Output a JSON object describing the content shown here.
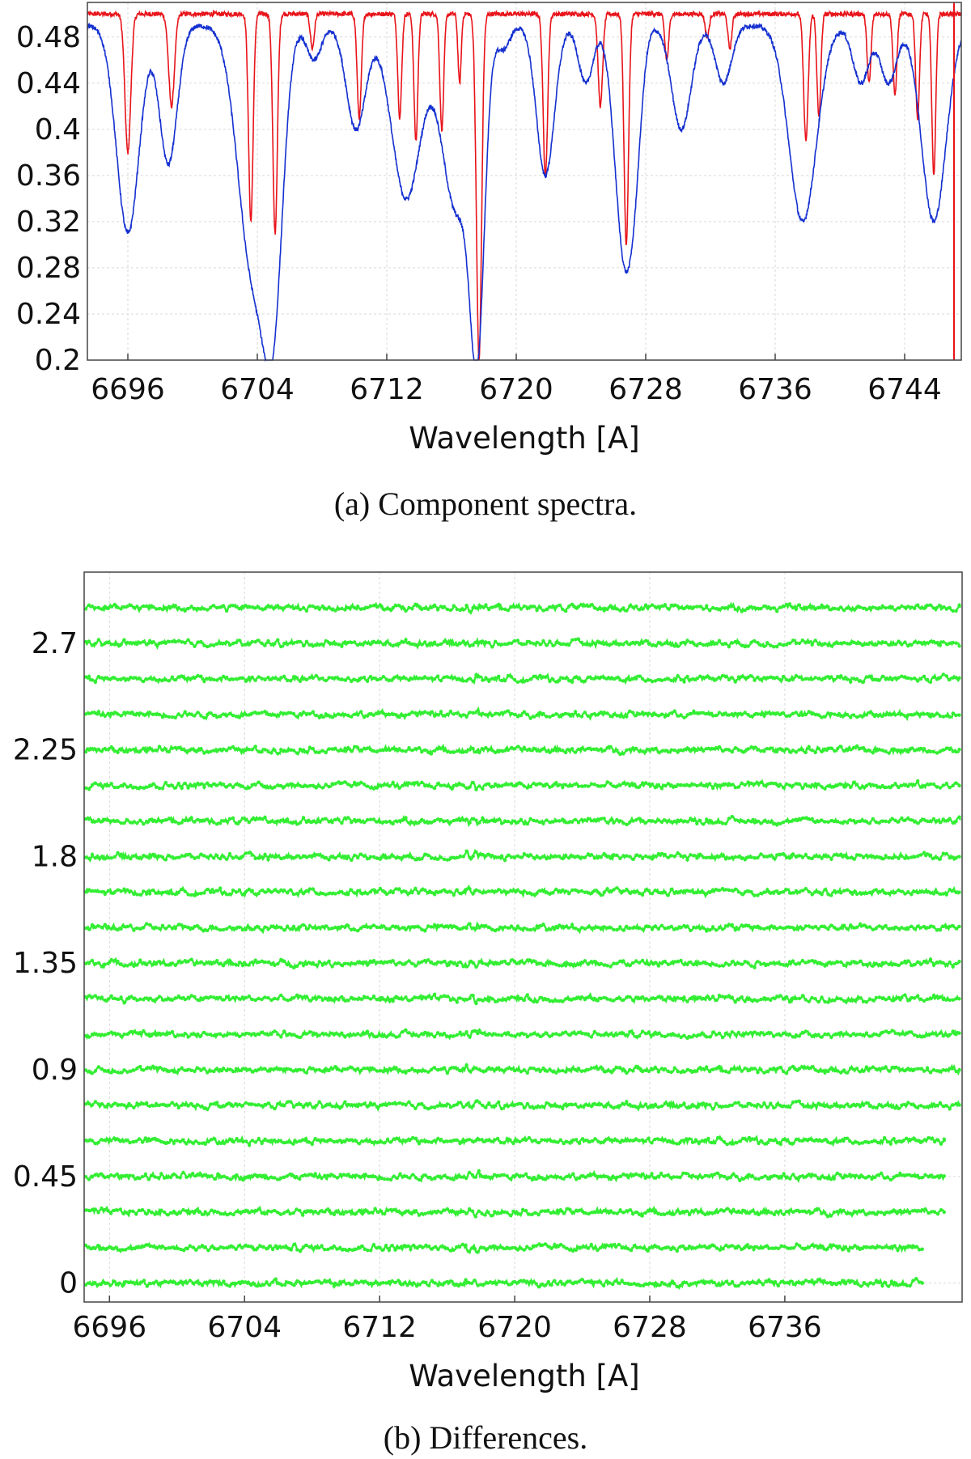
{
  "chart_data": [
    {
      "type": "line",
      "caption": "(a) Component spectra.",
      "xlabel": "Wavelength [A]",
      "ylabel": "",
      "xlim": [
        6693.5,
        6747.5
      ],
      "ylim": [
        0.2,
        0.51
      ],
      "xticks": [
        "6696",
        "6704",
        "6712",
        "6720",
        "6728",
        "6736",
        "6744"
      ],
      "yticks": [
        "0.48",
        "0.44",
        "0.4",
        "0.36",
        "0.32",
        "0.28",
        "0.24",
        "0.2"
      ],
      "grid": true,
      "colors": {
        "red": "#e8141a",
        "blue": "#1430d0"
      },
      "series": [
        {
          "color": "red",
          "continuum": 0.5,
          "lines": [
            {
              "x": 6696.0,
              "depth": 0.12,
              "width": 0.18
            },
            {
              "x": 6698.7,
              "depth": 0.08,
              "width": 0.18
            },
            {
              "x": 6703.6,
              "depth": 0.18,
              "width": 0.14
            },
            {
              "x": 6705.1,
              "depth": 0.19,
              "width": 0.14
            },
            {
              "x": 6707.4,
              "depth": 0.03,
              "width": 0.12
            },
            {
              "x": 6710.3,
              "depth": 0.09,
              "width": 0.13
            },
            {
              "x": 6712.8,
              "depth": 0.09,
              "width": 0.12
            },
            {
              "x": 6713.8,
              "depth": 0.11,
              "width": 0.12
            },
            {
              "x": 6715.4,
              "depth": 0.1,
              "width": 0.12
            },
            {
              "x": 6716.5,
              "depth": 0.06,
              "width": 0.1
            },
            {
              "x": 6717.7,
              "depth": 0.3,
              "width": 0.16
            },
            {
              "x": 6721.8,
              "depth": 0.14,
              "width": 0.14
            },
            {
              "x": 6725.2,
              "depth": 0.08,
              "width": 0.14
            },
            {
              "x": 6726.8,
              "depth": 0.2,
              "width": 0.14
            },
            {
              "x": 6729.3,
              "depth": 0.04,
              "width": 0.12
            },
            {
              "x": 6731.8,
              "depth": 0.02,
              "width": 0.12
            },
            {
              "x": 6733.2,
              "depth": 0.03,
              "width": 0.12
            },
            {
              "x": 6737.9,
              "depth": 0.11,
              "width": 0.14
            },
            {
              "x": 6738.7,
              "depth": 0.09,
              "width": 0.12
            },
            {
              "x": 6741.8,
              "depth": 0.06,
              "width": 0.12
            },
            {
              "x": 6743.4,
              "depth": 0.07,
              "width": 0.12
            },
            {
              "x": 6744.8,
              "depth": 0.09,
              "width": 0.12
            },
            {
              "x": 6745.8,
              "depth": 0.14,
              "width": 0.12
            }
          ]
        },
        {
          "color": "blue",
          "continuum": 0.49,
          "lines": [
            {
              "x": 6696.0,
              "depth": 0.18,
              "width": 0.7
            },
            {
              "x": 6698.5,
              "depth": 0.12,
              "width": 0.55
            },
            {
              "x": 6703.7,
              "depth": 0.21,
              "width": 0.9
            },
            {
              "x": 6705.0,
              "depth": 0.21,
              "width": 0.6
            },
            {
              "x": 6707.5,
              "depth": 0.03,
              "width": 0.45
            },
            {
              "x": 6710.1,
              "depth": 0.09,
              "width": 0.6
            },
            {
              "x": 6713.2,
              "depth": 0.15,
              "width": 0.9
            },
            {
              "x": 6716.3,
              "depth": 0.16,
              "width": 0.9
            },
            {
              "x": 6717.6,
              "depth": 0.24,
              "width": 0.45
            },
            {
              "x": 6719.2,
              "depth": 0.02,
              "width": 0.4
            },
            {
              "x": 6721.8,
              "depth": 0.13,
              "width": 0.55
            },
            {
              "x": 6724.3,
              "depth": 0.05,
              "width": 0.45
            },
            {
              "x": 6726.7,
              "depth": 0.2,
              "width": 0.6
            },
            {
              "x": 6727.4,
              "depth": 0.05,
              "width": 0.4
            },
            {
              "x": 6730.2,
              "depth": 0.09,
              "width": 0.6
            },
            {
              "x": 6732.8,
              "depth": 0.05,
              "width": 0.5
            },
            {
              "x": 6737.7,
              "depth": 0.17,
              "width": 0.85
            },
            {
              "x": 6741.3,
              "depth": 0.05,
              "width": 0.5
            },
            {
              "x": 6743.0,
              "depth": 0.05,
              "width": 0.5
            },
            {
              "x": 6745.8,
              "depth": 0.17,
              "width": 0.75
            }
          ]
        }
      ]
    },
    {
      "type": "scatter",
      "caption": "(b) Differences.",
      "xlabel": "Wavelength [A]",
      "ylabel": "",
      "xlim": [
        6694.5,
        6746.5
      ],
      "ylim": [
        -0.08,
        3.0
      ],
      "xticks": [
        "6696",
        "6704",
        "6712",
        "6720",
        "6728",
        "6736"
      ],
      "yticks": [
        "2.7",
        "2.25",
        "1.8",
        "1.35",
        "0.9",
        "0.45",
        "0"
      ],
      "grid": true,
      "colors": {
        "points": "#33ee33"
      },
      "row_step": 0.15,
      "row_count": 20
    }
  ]
}
